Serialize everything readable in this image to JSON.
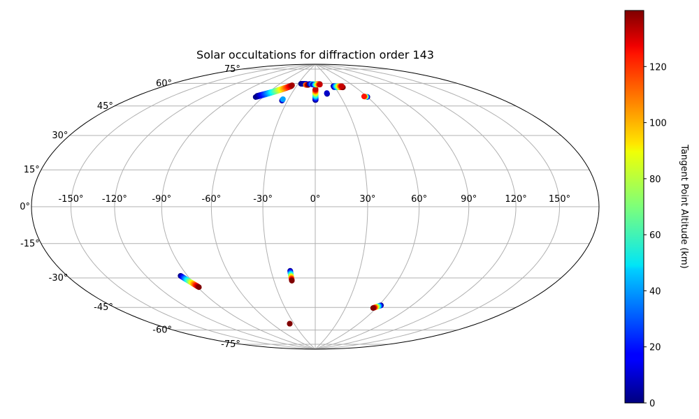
{
  "chart_data": {
    "type": "scatter",
    "projection": "hammer",
    "title": "Solar occultations for diffraction order 143",
    "grid": true,
    "lon_ticks": [
      -150,
      -120,
      -90,
      -60,
      -30,
      0,
      30,
      60,
      90,
      120,
      150
    ],
    "lon_tick_labels": [
      "-150°",
      "-120°",
      "-90°",
      "-60°",
      "-30°",
      "0°",
      "30°",
      "60°",
      "90°",
      "120°",
      "150°"
    ],
    "lat_ticks": [
      75,
      60,
      45,
      30,
      15,
      0,
      -15,
      -30,
      -45,
      -60,
      -75
    ],
    "lat_tick_labels": [
      "75°",
      "60°",
      "45°",
      "30°",
      "15°",
      "0°",
      "-15°",
      "-30°",
      "-45°",
      "-60°",
      "-75°"
    ],
    "colormap": "jet",
    "colorbar": {
      "label": "Tangent Point Altitude (km)",
      "range": [
        0,
        140
      ],
      "ticks": [
        0,
        20,
        40,
        60,
        80,
        100,
        120
      ],
      "tick_labels": [
        "0",
        "20",
        "40",
        "60",
        "80",
        "100",
        "120"
      ],
      "position": "right"
    },
    "series": [
      {
        "lon_start": -95,
        "lat_start": -37,
        "lon_end": -89,
        "lat_end": -44,
        "alt_start": 0,
        "alt_end": 140,
        "n": 30
      },
      {
        "lon_start": -17,
        "lat_start": -37,
        "lon_end": -17,
        "lat_end": -43,
        "alt_start": 0,
        "alt_end": 140,
        "n": 22
      },
      {
        "lon_start": 62,
        "lat_start": -57,
        "lon_end": 57,
        "lat_end": -59,
        "alt_start": 0,
        "alt_end": 140,
        "n": 16
      },
      {
        "lon_start": -36,
        "lat_start": -70.5,
        "lon_end": -36,
        "lat_end": -70.5,
        "alt_start": 130,
        "alt_end": 140,
        "n": 3
      },
      {
        "lon_start": -68,
        "lat_start": 64,
        "lon_end": -38,
        "lat_end": 73,
        "alt_start": 0,
        "alt_end": 140,
        "n": 50
      },
      {
        "lon_start": -68,
        "lat_start": 64.8,
        "lon_end": -38,
        "lat_end": 73.6,
        "alt_start": 0,
        "alt_end": 135,
        "n": 45
      },
      {
        "lon_start": -36,
        "lat_start": 63,
        "lon_end": -36,
        "lat_end": 64,
        "alt_start": 0,
        "alt_end": 40,
        "n": 4
      },
      {
        "lon_start": 0,
        "lat_start": 64,
        "lon_end": 0,
        "lat_end": 71,
        "alt_start": 0,
        "alt_end": 140,
        "n": 22
      },
      {
        "lon_start": 0.5,
        "lat_start": 64,
        "lon_end": 0.5,
        "lat_end": 71.5,
        "alt_start": 0,
        "alt_end": 130,
        "n": 22
      },
      {
        "lon_start": 15,
        "lat_start": 68,
        "lon_end": 15,
        "lat_end": 68.6,
        "alt_start": 0,
        "alt_end": 10,
        "n": 4
      },
      {
        "lon_start": 29,
        "lat_start": 72.5,
        "lon_end": 42,
        "lat_end": 72,
        "alt_start": 0,
        "alt_end": 140,
        "n": 30
      },
      {
        "lon_start": 29,
        "lat_start": 73.2,
        "lon_end": 42,
        "lat_end": 72.8,
        "alt_start": 0,
        "alt_end": 130,
        "n": 28
      },
      {
        "lon_start": 60,
        "lat_start": 64.5,
        "lon_end": 57,
        "lat_end": 65,
        "alt_start": 0,
        "alt_end": 120,
        "n": 8
      },
      {
        "lon_start": -25,
        "lat_start": 75,
        "lon_end": -15,
        "lat_end": 75,
        "alt_start": 0,
        "alt_end": 10,
        "n": 12
      },
      {
        "lon_start": -16,
        "lat_start": 74.3,
        "lon_end": -12,
        "lat_end": 74.3,
        "alt_start": 100,
        "alt_end": 140,
        "n": 5
      },
      {
        "lon_start": -10,
        "lat_start": 75,
        "lon_end": 8,
        "lat_end": 75,
        "alt_start": 0,
        "alt_end": 140,
        "n": 22
      },
      {
        "lon_start": -4,
        "lat_start": 74.6,
        "lon_end": 8,
        "lat_end": 74.6,
        "alt_start": 0,
        "alt_end": 130,
        "n": 14
      }
    ]
  }
}
